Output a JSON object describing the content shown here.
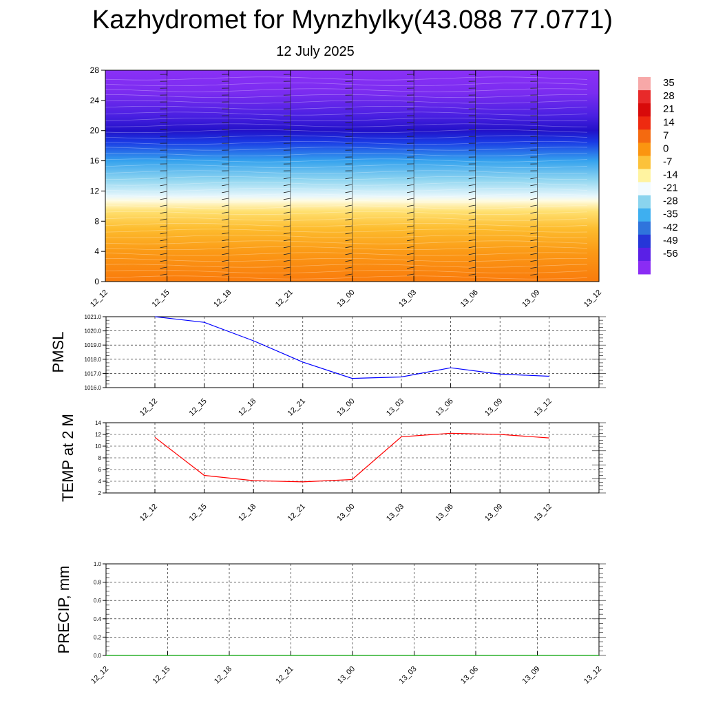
{
  "header": {
    "title": "Kazhydromet for Mynzhylky(43.088 77.0771)",
    "date": "12 July 2025"
  },
  "chart_data": [
    {
      "type": "heatmap",
      "name": "cross-section",
      "y_ticks": [
        "0",
        "4",
        "8",
        "12",
        "16",
        "20",
        "24",
        "28"
      ],
      "x_ticks": [
        "12_12",
        "12_15",
        "12_18",
        "12_21",
        "13_00",
        "13_03",
        "13_06",
        "13_09",
        "13_12"
      ],
      "ylim": [
        0,
        28
      ],
      "colorbar_labels": [
        "35",
        "28",
        "21",
        "14",
        "7",
        "0",
        "-7",
        "-14",
        "-21",
        "-28",
        "-35",
        "-42",
        "-49",
        "-56"
      ],
      "colorbar_colors": [
        "#f7a8a8",
        "#e82a2a",
        "#d80a0a",
        "#ee2a10",
        "#f46a10",
        "#fb9510",
        "#fcc23a",
        "#fff3a0",
        "#f2fbff",
        "#8ad4ee",
        "#3eaff0",
        "#2f74dc",
        "#2536d8",
        "#5a20e6",
        "#8a2cf4"
      ],
      "color_scale": [
        {
          "y": 0,
          "color": "#fa7b0c"
        },
        {
          "y": 4,
          "color": "#fb9a16"
        },
        {
          "y": 7,
          "color": "#fdbc2e"
        },
        {
          "y": 9.3,
          "color": "#ffe070"
        },
        {
          "y": 10.7,
          "color": "#fffbe0"
        },
        {
          "y": 11.3,
          "color": "#e8f7fc"
        },
        {
          "y": 13.5,
          "color": "#8fd5f0"
        },
        {
          "y": 16,
          "color": "#35a2ee"
        },
        {
          "y": 18.5,
          "color": "#1a3ae4"
        },
        {
          "y": 20,
          "color": "#2211c8"
        },
        {
          "y": 22,
          "color": "#4a20e2"
        },
        {
          "y": 25,
          "color": "#7a2cf0"
        },
        {
          "y": 28,
          "color": "#8a30f6"
        }
      ]
    },
    {
      "type": "line",
      "name": "pmsl",
      "ylabel": "PMSL",
      "x": [
        "12_12",
        "12_15",
        "12_18",
        "12_21",
        "13_00",
        "13_03",
        "13_06",
        "13_09",
        "13_12"
      ],
      "y_ticks": [
        "1016.0",
        "1017.0",
        "1018.0",
        "1019.0",
        "1020.0",
        "1021.0"
      ],
      "ylim": [
        1016,
        1021
      ],
      "series": [
        {
          "color": "#0000ff",
          "values": [
            1021.0,
            1020.6,
            1019.3,
            1017.8,
            1016.65,
            1016.75,
            1017.4,
            1016.95,
            1016.8
          ]
        }
      ]
    },
    {
      "type": "line",
      "name": "temp",
      "ylabel": "TEMP at 2 M",
      "x": [
        "12_12",
        "12_15",
        "12_18",
        "12_21",
        "13_00",
        "13_03",
        "13_06",
        "13_09",
        "13_12"
      ],
      "y_ticks": [
        "2",
        "4",
        "6",
        "8",
        "10",
        "12",
        "14"
      ],
      "ylim": [
        2,
        14
      ],
      "series": [
        {
          "color": "#ff0000",
          "values": [
            11.5,
            5.0,
            4.1,
            3.9,
            4.3,
            11.6,
            12.2,
            12.0,
            11.4
          ]
        }
      ]
    },
    {
      "type": "line",
      "name": "precip",
      "ylabel": "PRECIP, mm",
      "x_ticks": [
        "12_12",
        "12_15",
        "12_18",
        "12_21",
        "13_00",
        "13_03",
        "13_06",
        "13_09",
        "13_12"
      ],
      "y_ticks": [
        "0.0",
        "0.2",
        "0.4",
        "0.6",
        "0.8",
        "1.0"
      ],
      "ylim": [
        0,
        1
      ],
      "series": [
        {
          "color": "#00a000",
          "values": [
            0,
            0,
            0,
            0,
            0,
            0,
            0,
            0,
            0
          ]
        }
      ]
    }
  ]
}
